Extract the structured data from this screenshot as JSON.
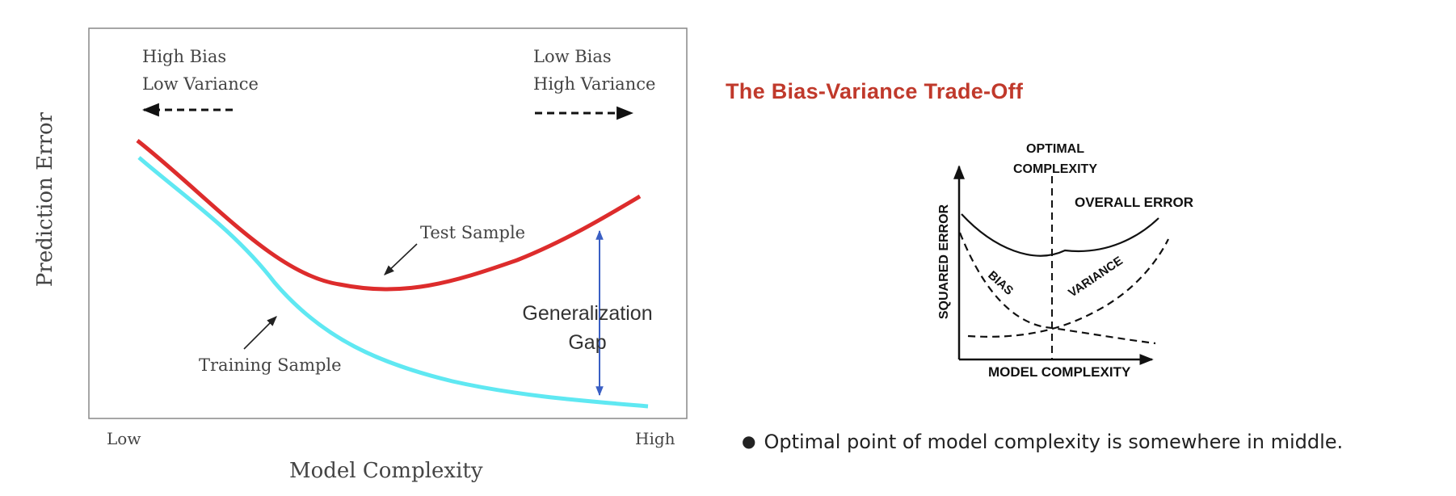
{
  "left_diagram": {
    "top_left_labels": [
      "High Bias",
      "Low Variance"
    ],
    "top_right_labels": [
      "Low Bias",
      "High Variance"
    ],
    "ylabel": "Prediction Error",
    "xlabel": "Model Complexity",
    "x_low": "Low",
    "x_high": "High",
    "test_label": "Test Sample",
    "training_label": "Training Sample",
    "gap_label": [
      "Generalization",
      "Gap"
    ],
    "colors": {
      "test": "#dd2c2c",
      "training": "#5fe8f2",
      "gap_arrow": "#3a5fc4"
    }
  },
  "heading": "The Bias-Variance Trade-Off",
  "right_diagram": {
    "optimal_label": [
      "OPTIMAL",
      "COMPLEXITY"
    ],
    "overall_label": "OVERALL ERROR",
    "bias_label": "BIAS",
    "variance_label": "VARIANCE",
    "ylabel": "SQUARED ERROR",
    "xlabel": "MODEL COMPLEXITY"
  },
  "bullet_text": "Optimal point of model complexity is somewhere in middle."
}
